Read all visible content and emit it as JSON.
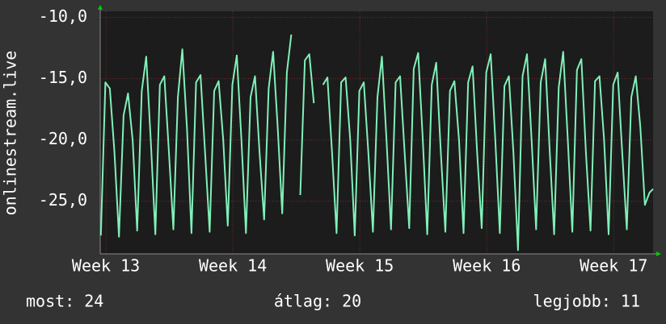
{
  "chart_data": {
    "type": "line",
    "ylabel": "onlinestream.live",
    "annotations": [
      "most: 24",
      "átlag: 20",
      "legjobb: 11"
    ],
    "color": "#80f0b8",
    "grid": true,
    "ylim": [
      -29.3,
      -9.5
    ],
    "yticks": [
      {
        "value": -10,
        "label": "-10,0"
      },
      {
        "value": -15,
        "label": "-15,0"
      },
      {
        "value": -20,
        "label": "-20,0"
      },
      {
        "value": -25,
        "label": "-25,0"
      }
    ],
    "xlim": [
      12.955,
      17.31
    ],
    "xticks": [
      {
        "value": 13,
        "label": "Week 13"
      },
      {
        "value": 14,
        "label": "Week 14"
      },
      {
        "value": 15,
        "label": "Week 15"
      },
      {
        "value": 16,
        "label": "Week 16"
      },
      {
        "value": 17,
        "label": "Week 17"
      }
    ],
    "x": [
      12.96,
      12.996,
      13.031,
      13.067,
      13.103,
      13.139,
      13.174,
      13.21,
      13.246,
      13.282,
      13.317,
      13.353,
      13.389,
      13.425,
      13.46,
      13.496,
      13.531,
      13.567,
      13.602,
      13.638,
      13.674,
      13.71,
      13.745,
      13.781,
      13.817,
      13.853,
      13.888,
      13.924,
      13.96,
      13.996,
      14.031,
      14.067,
      14.103,
      14.139,
      14.174,
      14.21,
      14.246,
      14.282,
      14.317,
      14.353,
      14.389,
      14.425,
      14.46,
      14.496,
      14.531,
      14.567,
      14.602,
      14.638,
      14.674,
      14.71,
      14.745,
      14.781,
      14.817,
      14.853,
      14.888,
      14.924,
      14.96,
      14.996,
      15.031,
      15.067,
      15.103,
      15.139,
      15.174,
      15.21,
      15.246,
      15.282,
      15.317,
      15.353,
      15.389,
      15.425,
      15.46,
      15.496,
      15.531,
      15.567,
      15.602,
      15.638,
      15.674,
      15.71,
      15.745,
      15.781,
      15.817,
      15.853,
      15.888,
      15.924,
      15.96,
      15.996,
      16.031,
      16.067,
      16.103,
      16.139,
      16.174,
      16.21,
      16.246,
      16.282,
      16.317,
      16.353,
      16.389,
      16.425,
      16.46,
      16.496,
      16.531,
      16.567,
      16.602,
      16.638,
      16.674,
      16.71,
      16.745,
      16.781,
      16.817,
      16.853,
      16.888,
      16.924,
      16.96,
      16.996,
      17.031,
      17.067,
      17.103,
      17.139,
      17.174,
      17.21,
      17.246,
      17.282,
      17.31
    ],
    "values": [
      -27.8,
      -15.3,
      -15.8,
      -21,
      -27.9,
      -18,
      -16.2,
      -20,
      -27.4,
      -16,
      -13.2,
      -20,
      -27.7,
      -15.5,
      -14.8,
      -21,
      -27.3,
      -16.5,
      -12.6,
      -19,
      -27.6,
      -15.3,
      -14.7,
      -21,
      -27.5,
      -16,
      -15.2,
      -20,
      -27.0,
      -15.5,
      -13.1,
      -20,
      -27.6,
      -16.5,
      -14.8,
      -21,
      -26.5,
      -15.8,
      -12.8,
      -19,
      -26.0,
      -14.5,
      -11.4,
      null,
      -24.5,
      -13.5,
      -13.0,
      -17,
      null,
      -15.5,
      -14.9,
      -21,
      -27.6,
      -15.3,
      -14.9,
      -20,
      -27.8,
      -16,
      -15.3,
      -21,
      -27.5,
      -16.5,
      -13.2,
      -20,
      -27.3,
      -15.3,
      -14.8,
      -21,
      -27.2,
      -14.2,
      -12.9,
      -20,
      -27.7,
      -15.5,
      -13.7,
      -21,
      -27.5,
      -16,
      -15.2,
      -20,
      -27.6,
      -15.3,
      -14.0,
      -21,
      -27.2,
      -14.5,
      -13.0,
      -20,
      -27.6,
      -15.6,
      -14.8,
      -21,
      -29.0,
      -14.8,
      -13.0,
      -20,
      -27.3,
      -15.3,
      -13.4,
      -21,
      -27.7,
      -15.7,
      -12.8,
      -20,
      -27.5,
      -14.3,
      -13.4,
      -21,
      -27.4,
      -15.2,
      -14.8,
      -20,
      -27.7,
      -15.5,
      -14.5,
      -21,
      -27.3,
      -16.5,
      -14.8,
      -19,
      -25.3,
      -24.3,
      -24.0
    ]
  }
}
